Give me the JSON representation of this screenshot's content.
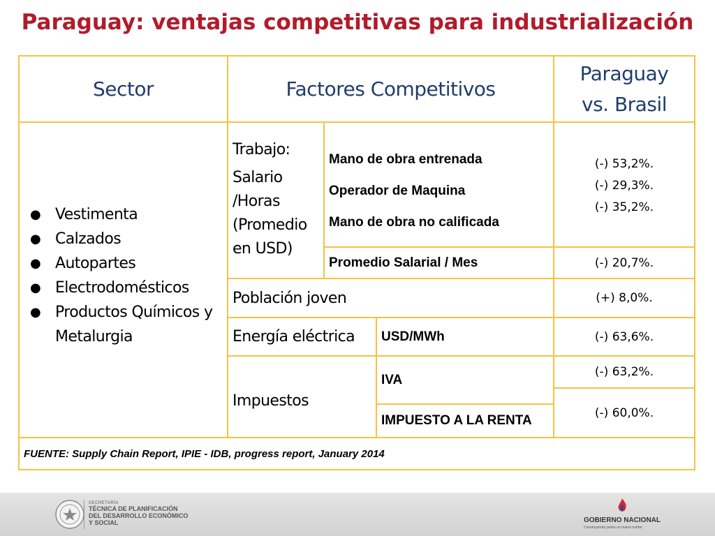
{
  "title": "Paraguay: ventajas competitivas para industrialización",
  "headers": {
    "sector": "Sector",
    "factores": "Factores Competitivos",
    "comparison_line1": "Paraguay",
    "comparison_line2": "vs. Brasil"
  },
  "sectors": [
    "Vestimenta",
    "Calzados",
    "Autopartes",
    "Electrodomésticos",
    "Productos Químicos y Metalurgia"
  ],
  "trabajo": {
    "label": "Trabajo:",
    "sublabel_lines": [
      "Salario",
      "/Horas",
      "(Promedio",
      "en USD)"
    ],
    "items": [
      "Mano de obra entrenada",
      "Operador de Maquina",
      "Mano de obra no calificada"
    ],
    "values": [
      "(-) 53,2%.",
      "(-) 29,3%.",
      "(-) 35,2%."
    ],
    "avg_label": "Promedio Salarial / Mes",
    "avg_value": "(-) 20,7%."
  },
  "poblacion": {
    "label": "Población joven",
    "value": "(+) 8,0%."
  },
  "energia": {
    "label": "Energía eléctrica",
    "unit": "USD/MWh",
    "value": "(-) 63,6%."
  },
  "impuestos": {
    "label": "Impuestos",
    "iva_label": "IVA",
    "iva_value": "(-) 63,2%.",
    "renta_label": "IMPUESTO A LA RENTA",
    "renta_value": "(-) 60,0%."
  },
  "source": "FUENTE: Supply Chain Report, IPIE - IDB, progress report, January 2014",
  "footer": {
    "left_small": "SECRETARÍA",
    "left_lines": [
      "TÉCNICA DE PLANIFICACIÓN",
      "DEL DESARROLLO ECONÓMICO",
      "Y SOCIAL"
    ],
    "right_title": "GOBIERNO NACIONAL",
    "right_sub": "Construyendo juntos un nuevo rumbo"
  },
  "colors": {
    "title": "#b11c2a",
    "header_text": "#1f3d6b",
    "border": "#f5c342"
  }
}
